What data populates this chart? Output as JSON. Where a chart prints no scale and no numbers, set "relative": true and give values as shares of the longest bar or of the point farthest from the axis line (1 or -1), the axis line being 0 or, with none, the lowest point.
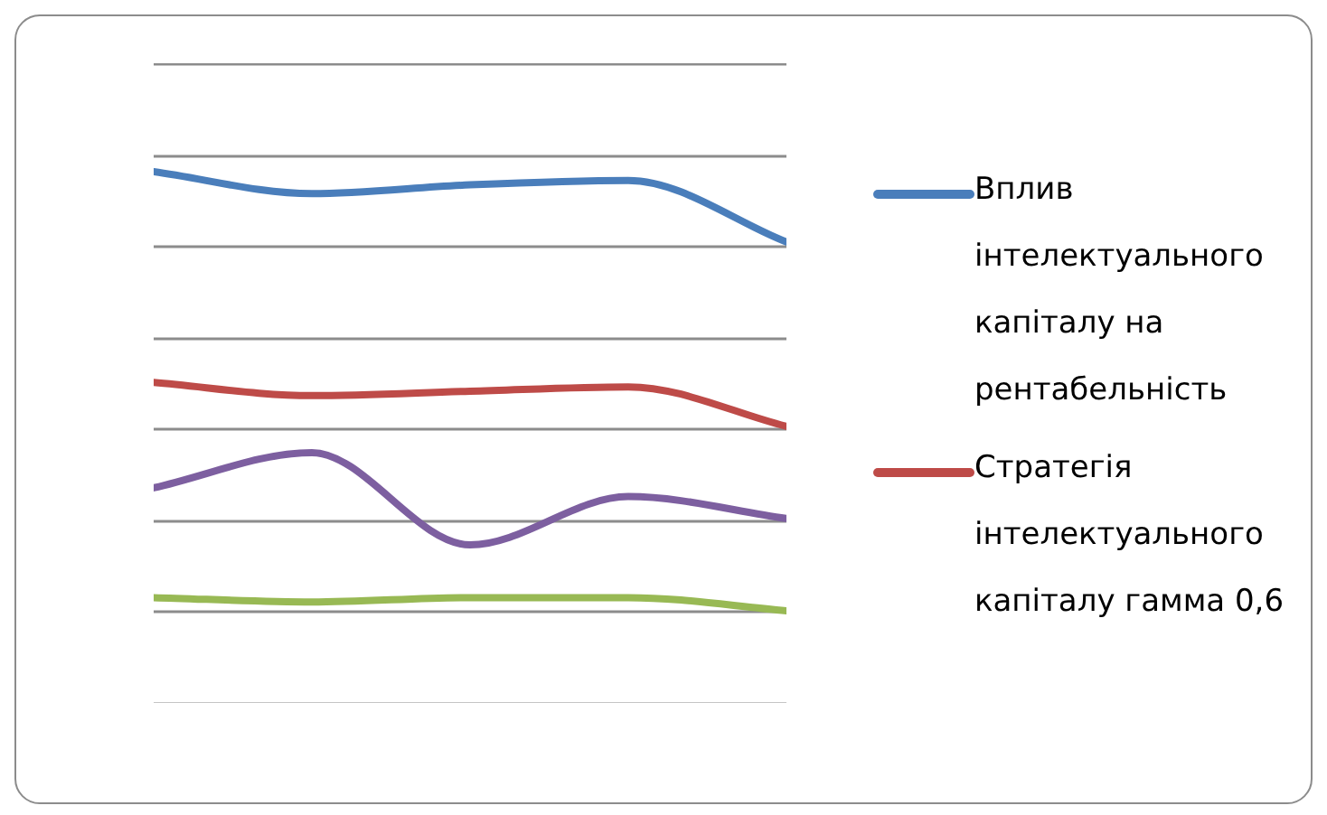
{
  "chart_data": {
    "type": "line",
    "relative": true,
    "grid": true,
    "legend": "right",
    "marker": "none",
    "line_style": "solid",
    "categories": [
      null,
      null,
      null,
      null,
      null
    ],
    "series": [
      {
        "name": "Вплив інтелектуального капіталу на рентабельність",
        "color": "#4a7ebb",
        "values": [
          1,
          0.95,
          0.97,
          0.98,
          0.84
        ]
      },
      {
        "name": "Стратегія інтелектуального капіталу гамма 0,6",
        "color": "#be4b48",
        "values": [
          0.52,
          0.49,
          0.5,
          0.51,
          0.42
        ]
      },
      {
        "color": "#7d5fa0",
        "values": [
          0.28,
          0.36,
          0.15,
          0.26,
          0.21
        ]
      },
      {
        "color": "#98b954",
        "values": [
          0.03,
          0.02,
          0.03,
          0.03,
          0
        ]
      }
    ]
  }
}
